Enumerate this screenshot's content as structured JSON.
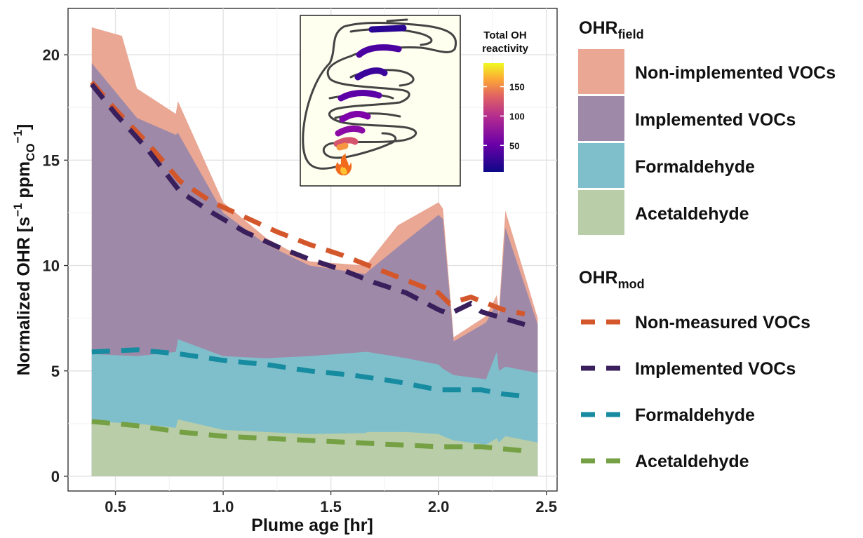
{
  "chart_data": {
    "type": "area",
    "xlabel": "Plume age [hr]",
    "ylabel_main": "Normalized OHR [s",
    "ylabel_sup": "−1",
    "ylabel_mid": " ppm",
    "ylabel_sub": "CO",
    "ylabel_end": "]",
    "xlim": [
      0.28,
      2.55
    ],
    "ylim": [
      -0.7,
      22.2
    ],
    "x_ticks": [
      0.5,
      1.0,
      1.5,
      2.0,
      2.5
    ],
    "x_tick_labels": [
      "0.5",
      "1.0",
      "1.5",
      "2.0",
      "2.5"
    ],
    "y_ticks": [
      0,
      5,
      10,
      15,
      20
    ],
    "y_tick_labels": [
      "0",
      "5",
      "10",
      "15",
      "20"
    ],
    "grid": true,
    "field_title_main": "OHR",
    "field_title_sub": "field",
    "mod_title_main": "OHR",
    "mod_title_sub": "mod",
    "field_series": [
      {
        "name": "Acetaldehyde",
        "color": "#b9cda8",
        "x": [
          0.39,
          0.6,
          0.78,
          0.79,
          1.0,
          1.2,
          1.4,
          1.66,
          1.67,
          1.85,
          2.0,
          2.02,
          2.07,
          2.22,
          2.27,
          2.28,
          2.31,
          2.46
        ],
        "top": [
          2.6,
          2.5,
          2.3,
          2.7,
          2.2,
          2.1,
          2.0,
          2.05,
          2.1,
          2.1,
          2.0,
          1.9,
          1.7,
          1.5,
          1.8,
          1.6,
          1.9,
          1.6
        ]
      },
      {
        "name": "Formaldehyde",
        "color": "#7fbfcc",
        "x": [
          0.39,
          0.6,
          0.78,
          0.79,
          1.0,
          1.2,
          1.4,
          1.66,
          1.67,
          1.85,
          2.0,
          2.02,
          2.07,
          2.22,
          2.27,
          2.28,
          2.31,
          2.46
        ],
        "top": [
          5.8,
          5.7,
          5.9,
          6.5,
          5.7,
          5.6,
          5.7,
          5.9,
          5.9,
          5.6,
          5.3,
          5.1,
          4.8,
          4.6,
          5.9,
          5.0,
          5.2,
          4.9
        ]
      },
      {
        "name": "Implemented VOCs",
        "color": "#9e89a8",
        "x": [
          0.39,
          0.6,
          0.78,
          0.79,
          1.0,
          1.2,
          1.4,
          1.66,
          1.67,
          1.85,
          2.0,
          2.02,
          2.07,
          2.22,
          2.27,
          2.28,
          2.31,
          2.46
        ],
        "top": [
          19.6,
          17.0,
          16.2,
          16.3,
          12.5,
          11.0,
          10.0,
          9.6,
          9.7,
          11.2,
          12.4,
          12.2,
          6.4,
          7.3,
          8.2,
          7.6,
          11.8,
          7.2
        ]
      },
      {
        "name": "Non-implemented VOCs",
        "color": "#e9a794",
        "x": [
          0.39,
          0.53,
          0.6,
          0.78,
          0.79,
          1.0,
          1.2,
          1.4,
          1.66,
          1.67,
          1.81,
          2.0,
          2.02,
          2.07,
          2.22,
          2.27,
          2.28,
          2.31,
          2.46
        ],
        "top": [
          21.3,
          20.9,
          18.4,
          17.2,
          17.8,
          13.0,
          11.3,
          10.2,
          10.0,
          10.1,
          11.9,
          13.0,
          12.7,
          6.6,
          7.6,
          8.6,
          7.8,
          12.6,
          7.5
        ]
      }
    ],
    "mod_series": [
      {
        "name": "Non-measured VOCs",
        "color": "#d4572c",
        "x": [
          0.39,
          0.5,
          0.65,
          0.8,
          0.95,
          1.1,
          1.25,
          1.4,
          1.55,
          1.7,
          1.85,
          2.0,
          2.05,
          2.15,
          2.2,
          2.3,
          2.4
        ],
        "y": [
          18.7,
          17.4,
          15.8,
          14.0,
          13.0,
          12.3,
          11.6,
          11.0,
          10.5,
          9.9,
          9.3,
          8.7,
          8.2,
          8.5,
          8.3,
          7.9,
          7.7
        ]
      },
      {
        "name": "Implemented VOCs",
        "color": "#3a1f5d",
        "x": [
          0.39,
          0.5,
          0.65,
          0.8,
          0.95,
          1.1,
          1.25,
          1.4,
          1.55,
          1.7,
          1.85,
          2.0,
          2.05,
          2.15,
          2.2,
          2.3,
          2.4
        ],
        "y": [
          18.6,
          17.2,
          15.5,
          13.5,
          12.5,
          11.6,
          10.9,
          10.3,
          9.8,
          9.2,
          8.7,
          7.9,
          7.7,
          8.2,
          7.8,
          7.5,
          7.2
        ]
      },
      {
        "name": "Formaldehyde",
        "color": "#178ca0",
        "x": [
          0.39,
          0.6,
          0.8,
          1.0,
          1.2,
          1.4,
          1.6,
          1.8,
          2.0,
          2.1,
          2.2,
          2.3,
          2.4
        ],
        "y": [
          5.9,
          6.0,
          5.8,
          5.5,
          5.3,
          5.0,
          4.8,
          4.5,
          4.1,
          4.1,
          4.1,
          3.9,
          3.8
        ]
      },
      {
        "name": "Acetaldehyde",
        "color": "#75a044",
        "x": [
          0.39,
          0.6,
          0.8,
          1.0,
          1.2,
          1.4,
          1.6,
          1.8,
          2.0,
          2.1,
          2.2,
          2.3,
          2.4
        ],
        "y": [
          2.6,
          2.4,
          2.1,
          1.9,
          1.8,
          1.7,
          1.6,
          1.5,
          1.4,
          1.4,
          1.4,
          1.3,
          1.2
        ]
      }
    ],
    "inset": {
      "colorbar_title_line1": "Total OH",
      "colorbar_title_line2": "reactivity",
      "colorbar_ticks": [
        50,
        100,
        150
      ],
      "colorbar_tick_labels": [
        "50",
        "100",
        "150"
      ],
      "colorbar_range": [
        5,
        190
      ]
    }
  }
}
